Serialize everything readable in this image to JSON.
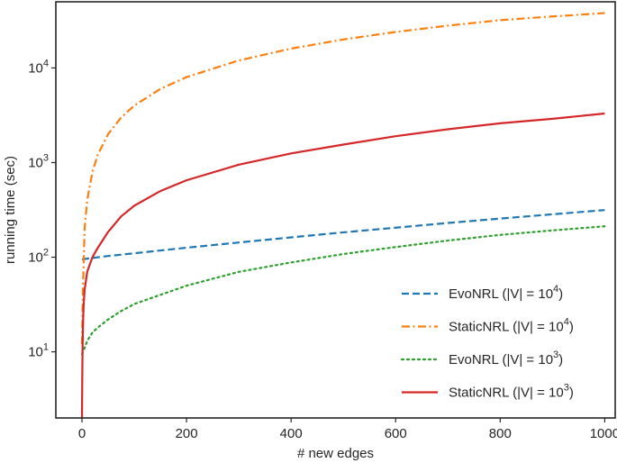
{
  "chart_data": {
    "type": "line",
    "title": "",
    "xlabel": "# new edges",
    "ylabel": "running time (sec)",
    "xlim": [
      -50,
      1020
    ],
    "ylim": [
      2,
      50000
    ],
    "yscale": "log",
    "grid": false,
    "legend_position": "lower-right",
    "x_ticks": [
      0,
      200,
      400,
      600,
      800,
      1000
    ],
    "y_ticks": [
      {
        "value": 10,
        "base": "10",
        "exp": "1"
      },
      {
        "value": 100,
        "base": "10",
        "exp": "2"
      },
      {
        "value": 1000,
        "base": "10",
        "exp": "3"
      },
      {
        "value": 10000,
        "base": "10",
        "exp": "4"
      }
    ],
    "series": [
      {
        "name": "EvoNRL (|V| = 10^4)",
        "label_main": "EvoNRL (|V| = 10",
        "label_exp": "4",
        "label_tail": ")",
        "color": "#1f77b4",
        "style": "dashed",
        "x": [
          0,
          50,
          100,
          200,
          300,
          400,
          500,
          600,
          700,
          800,
          900,
          1000
        ],
        "y": [
          95,
          103,
          110,
          126,
          143,
          162,
          183,
          205,
          230,
          256,
          284,
          315
        ]
      },
      {
        "name": "StaticNRL (|V| = 10^4)",
        "label_main": "StaticNRL (|V| = 10",
        "label_exp": "4",
        "label_tail": ")",
        "color": "#ff7f0e",
        "style": "dashdot",
        "x": [
          0,
          2,
          5,
          10,
          20,
          30,
          50,
          75,
          100,
          150,
          200,
          300,
          400,
          500,
          600,
          700,
          800,
          900,
          1000
        ],
        "y": [
          12,
          50,
          200,
          400,
          800,
          1200,
          2000,
          3000,
          4000,
          6000,
          8000,
          12000,
          16000,
          20000,
          24000,
          28000,
          32000,
          35000,
          38000
        ]
      },
      {
        "name": "EvoNRL (|V| = 10^3)",
        "label_main": "EvoNRL (|V| = 10",
        "label_exp": "3",
        "label_tail": ")",
        "color": "#2ca02c",
        "style": "dotted",
        "x": [
          0,
          5,
          10,
          20,
          30,
          50,
          75,
          100,
          150,
          200,
          300,
          400,
          500,
          600,
          700,
          800,
          900,
          1000
        ],
        "y": [
          9.5,
          11,
          13,
          16,
          18,
          22,
          27,
          32,
          40,
          50,
          70,
          88,
          108,
          128,
          150,
          172,
          192,
          212
        ]
      },
      {
        "name": "StaticNRL (|V| = 10^3)",
        "label_main": "StaticNRL (|V| = 10",
        "label_exp": "3",
        "label_tail": ")",
        "color": "#d62728",
        "style": "solid",
        "x": [
          0,
          0.5,
          1,
          2,
          3,
          5,
          10,
          20,
          30,
          50,
          75,
          100,
          150,
          200,
          300,
          400,
          500,
          600,
          700,
          800,
          900,
          1000
        ],
        "y": [
          2,
          5,
          10,
          20,
          30,
          45,
          70,
          100,
          125,
          185,
          270,
          350,
          500,
          650,
          950,
          1250,
          1550,
          1900,
          2250,
          2600,
          2900,
          3300
        ]
      }
    ]
  }
}
